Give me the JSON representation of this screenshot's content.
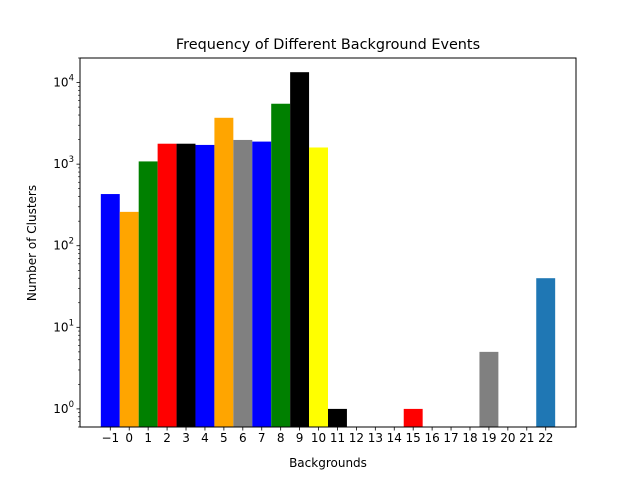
{
  "chart_data": {
    "type": "bar",
    "title": "Frequency of Different Background Events",
    "xlabel": "Backgrounds",
    "ylabel": "Number of Clusters",
    "yscale": "log",
    "ylim": [
      0.6,
      20000
    ],
    "grid": false,
    "legend": "none",
    "categories": [
      "−1",
      "0",
      "1",
      "2",
      "3",
      "4",
      "5",
      "6",
      "7",
      "8",
      "9",
      "10",
      "11",
      "12",
      "13",
      "14",
      "15",
      "16",
      "17",
      "18",
      "19",
      "20",
      "21",
      "22"
    ],
    "values": [
      430,
      260,
      1080,
      1780,
      1780,
      1720,
      3700,
      1980,
      1890,
      5500,
      13400,
      1600,
      1,
      null,
      null,
      null,
      1,
      null,
      null,
      null,
      5,
      null,
      null,
      40
    ],
    "colors": [
      "#0000ff",
      "#ffa500",
      "#008000",
      "#ff0000",
      "#000000",
      "#0000ff",
      "#ffa500",
      "#808080",
      "#0000ff",
      "#008000",
      "#000000",
      "#ffff00",
      "#000000",
      "#1f77b4",
      "#1f77b4",
      "#1f77b4",
      "#ff0000",
      "#1f77b4",
      "#1f77b4",
      "#1f77b4",
      "#808080",
      "#1f77b4",
      "#1f77b4",
      "#1f77b4"
    ],
    "y_ticks": [
      {
        "value": 1,
        "base": "10",
        "exp": "0"
      },
      {
        "value": 10,
        "base": "10",
        "exp": "1"
      },
      {
        "value": 100,
        "base": "10",
        "exp": "2"
      },
      {
        "value": 1000,
        "base": "10",
        "exp": "3"
      },
      {
        "value": 10000,
        "base": "10",
        "exp": "4"
      }
    ]
  }
}
